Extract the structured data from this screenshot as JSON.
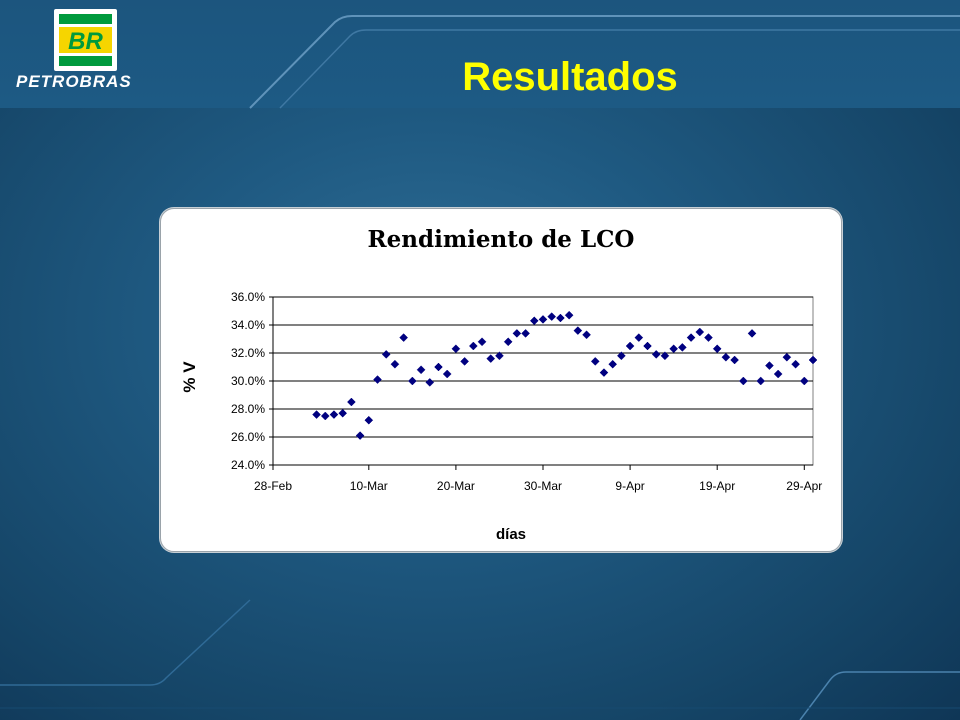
{
  "slide": {
    "title": "Resultados",
    "logo_badge": "BR",
    "logo_name": "PETROBRAS",
    "colors": {
      "background": "#1f5a82",
      "title": "#ffff00",
      "logo_green": "#009a3d",
      "logo_yellow": "#f6d500",
      "marker": "#000080"
    }
  },
  "chart_data": {
    "type": "scatter",
    "title": "Rendimiento de LCO",
    "xlabel": "días",
    "ylabel": "% V",
    "x_ticks": [
      "28-Feb",
      "10-Mar",
      "20-Mar",
      "30-Mar",
      "9-Apr",
      "19-Apr",
      "29-Apr"
    ],
    "y_ticks": [
      "24.0%",
      "26.0%",
      "28.0%",
      "30.0%",
      "32.0%",
      "34.0%",
      "36.0%"
    ],
    "xlim": [
      "28-Feb",
      "30-Apr"
    ],
    "ylim": [
      24.0,
      36.0
    ],
    "grid": true,
    "legend": false,
    "series": [
      {
        "marker": "diamond",
        "color": "#000080",
        "x": [
          "4-Mar",
          "5-Mar",
          "6-Mar",
          "7-Mar",
          "8-Mar",
          "9-Mar",
          "10-Mar",
          "11-Mar",
          "12-Mar",
          "13-Mar",
          "14-Mar",
          "15-Mar",
          "16-Mar",
          "17-Mar",
          "18-Mar",
          "19-Mar",
          "20-Mar",
          "21-Mar",
          "22-Mar",
          "23-Mar",
          "24-Mar",
          "25-Mar",
          "26-Mar",
          "27-Mar",
          "28-Mar",
          "29-Mar",
          "30-Mar",
          "31-Mar",
          "1-Apr",
          "2-Apr",
          "3-Apr",
          "4-Apr",
          "5-Apr",
          "6-Apr",
          "7-Apr",
          "8-Apr",
          "9-Apr",
          "10-Apr",
          "11-Apr",
          "12-Apr",
          "13-Apr",
          "14-Apr",
          "15-Apr",
          "16-Apr",
          "17-Apr",
          "18-Apr",
          "19-Apr",
          "20-Apr",
          "21-Apr",
          "22-Apr",
          "23-Apr",
          "24-Apr",
          "25-Apr",
          "26-Apr",
          "27-Apr",
          "28-Apr",
          "29-Apr",
          "30-Apr"
        ],
        "y": [
          27.6,
          27.5,
          27.6,
          27.7,
          28.5,
          26.1,
          27.2,
          30.1,
          31.9,
          31.2,
          33.1,
          30.0,
          30.8,
          29.9,
          31.0,
          30.5,
          32.3,
          31.4,
          32.5,
          32.8,
          31.6,
          31.8,
          32.8,
          33.4,
          33.4,
          34.3,
          34.4,
          34.6,
          34.5,
          34.7,
          33.6,
          33.3,
          31.4,
          30.6,
          31.2,
          31.8,
          32.5,
          33.1,
          32.5,
          31.9,
          31.8,
          32.3,
          32.4,
          33.1,
          33.5,
          33.1,
          32.3,
          31.7,
          31.5,
          30.0,
          33.4,
          30.0,
          31.1,
          30.5,
          31.7,
          31.2,
          30.0,
          31.5
        ]
      }
    ]
  }
}
